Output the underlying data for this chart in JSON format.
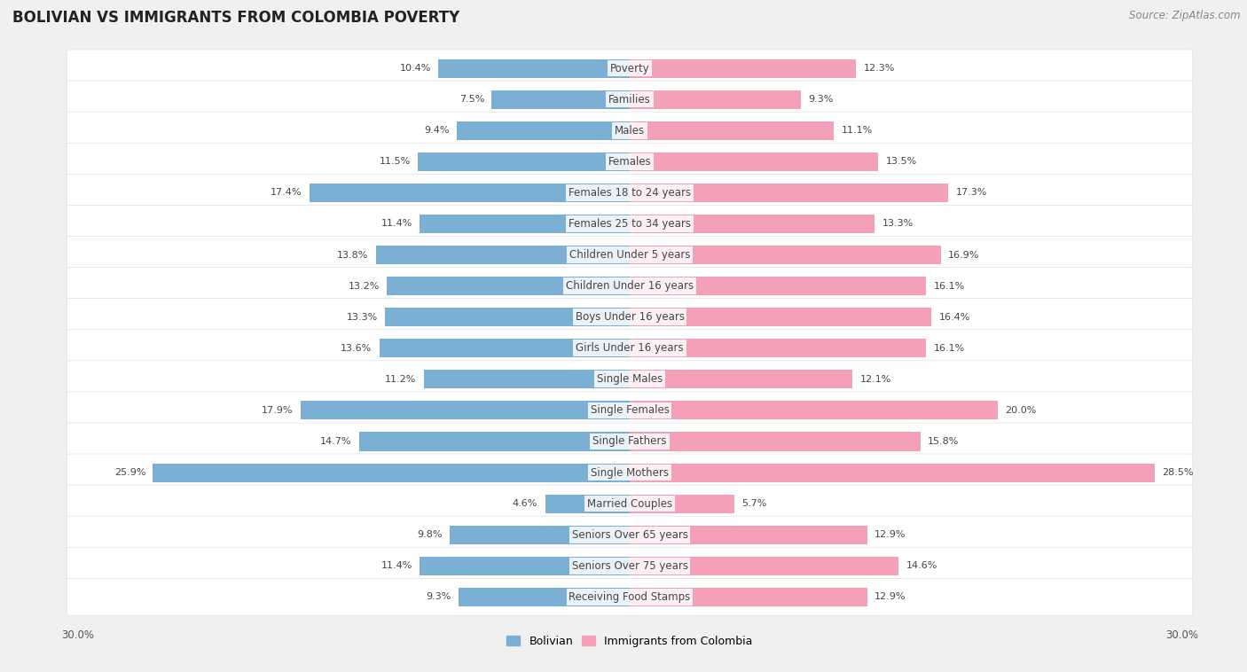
{
  "title": "BOLIVIAN VS IMMIGRANTS FROM COLOMBIA POVERTY",
  "source": "Source: ZipAtlas.com",
  "categories": [
    "Poverty",
    "Families",
    "Males",
    "Females",
    "Females 18 to 24 years",
    "Females 25 to 34 years",
    "Children Under 5 years",
    "Children Under 16 years",
    "Boys Under 16 years",
    "Girls Under 16 years",
    "Single Males",
    "Single Females",
    "Single Fathers",
    "Single Mothers",
    "Married Couples",
    "Seniors Over 65 years",
    "Seniors Over 75 years",
    "Receiving Food Stamps"
  ],
  "bolivian": [
    10.4,
    7.5,
    9.4,
    11.5,
    17.4,
    11.4,
    13.8,
    13.2,
    13.3,
    13.6,
    11.2,
    17.9,
    14.7,
    25.9,
    4.6,
    9.8,
    11.4,
    9.3
  ],
  "colombia": [
    12.3,
    9.3,
    11.1,
    13.5,
    17.3,
    13.3,
    16.9,
    16.1,
    16.4,
    16.1,
    12.1,
    20.0,
    15.8,
    28.5,
    5.7,
    12.9,
    14.6,
    12.9
  ],
  "bolivian_color": "#7bafd4",
  "colombia_color": "#f4a0b8",
  "background_color": "#f0f0f0",
  "bar_background": "#ffffff",
  "row_separator": "#e0e0e0",
  "axis_max": 30.0,
  "bar_height": 0.6,
  "legend_bolivian": "Bolivian",
  "legend_colombia": "Immigrants from Colombia",
  "title_fontsize": 12,
  "label_fontsize": 8.5,
  "value_fontsize": 8,
  "source_fontsize": 8.5,
  "tick_fontsize": 8.5
}
